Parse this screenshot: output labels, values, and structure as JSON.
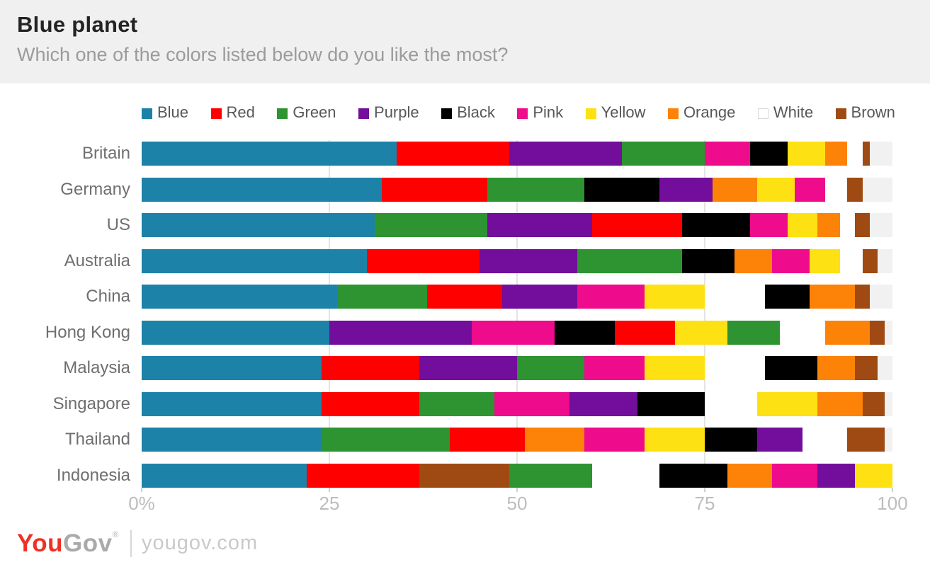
{
  "header": {
    "title": "Blue planet",
    "subtitle": "Which one of the colors listed below do you like the most?"
  },
  "footer": {
    "brand_you": "You",
    "brand_gov": "Gov",
    "reg_mark": "®",
    "domain": "yougov.com"
  },
  "colors": {
    "header_bg": "#f0f0f0",
    "bar_track": "#f1f1f1",
    "gridline": "#e4e4e4",
    "palette": {
      "Blue": "#1d82a8",
      "Red": "#fe0000",
      "Green": "#2e9431",
      "Purple": "#720e9b",
      "Black": "#000000",
      "Pink": "#ee0b8c",
      "Yellow": "#fee112",
      "Orange": "#fd8208",
      "White": "#ffffff",
      "Brown": "#9e4a12"
    }
  },
  "chart_data": {
    "type": "bar",
    "stacked": true,
    "orientation": "horizontal",
    "unit": "%",
    "title": "Blue planet",
    "subtitle": "Which one of the colors listed below do you like the most?",
    "xlim": [
      0,
      100
    ],
    "grid_values": [
      25,
      50,
      75
    ],
    "x_ticks": [
      {
        "value": 0,
        "label": "0%"
      },
      {
        "value": 25,
        "label": "25"
      },
      {
        "value": 50,
        "label": "50"
      },
      {
        "value": 75,
        "label": "75"
      },
      {
        "value": 100,
        "label": "100"
      }
    ],
    "legend": [
      "Blue",
      "Red",
      "Green",
      "Purple",
      "Black",
      "Pink",
      "Yellow",
      "Orange",
      "White",
      "Brown"
    ],
    "legend_position": "top",
    "rows": [
      {
        "country": "Britain",
        "segments": [
          [
            "Blue",
            34
          ],
          [
            "Red",
            15
          ],
          [
            "Purple",
            15
          ],
          [
            "Green",
            11
          ],
          [
            "Pink",
            6
          ],
          [
            "Black",
            5
          ],
          [
            "Yellow",
            5
          ],
          [
            "Orange",
            3
          ],
          [
            "White",
            2
          ],
          [
            "Brown",
            1
          ]
        ]
      },
      {
        "country": "Germany",
        "segments": [
          [
            "Blue",
            32
          ],
          [
            "Red",
            14
          ],
          [
            "Green",
            13
          ],
          [
            "Black",
            10
          ],
          [
            "Purple",
            7
          ],
          [
            "Orange",
            6
          ],
          [
            "Yellow",
            5
          ],
          [
            "Pink",
            4
          ],
          [
            "White",
            3
          ],
          [
            "Brown",
            2
          ]
        ]
      },
      {
        "country": "US",
        "segments": [
          [
            "Blue",
            31
          ],
          [
            "Green",
            15
          ],
          [
            "Purple",
            14
          ],
          [
            "Red",
            12
          ],
          [
            "Black",
            9
          ],
          [
            "Pink",
            5
          ],
          [
            "Yellow",
            4
          ],
          [
            "Orange",
            3
          ],
          [
            "White",
            2
          ],
          [
            "Brown",
            2
          ]
        ]
      },
      {
        "country": "Australia",
        "segments": [
          [
            "Blue",
            30
          ],
          [
            "Red",
            15
          ],
          [
            "Purple",
            13
          ],
          [
            "Green",
            14
          ],
          [
            "Black",
            7
          ],
          [
            "Orange",
            5
          ],
          [
            "Pink",
            5
          ],
          [
            "Yellow",
            4
          ],
          [
            "White",
            3
          ],
          [
            "Brown",
            2
          ]
        ]
      },
      {
        "country": "China",
        "segments": [
          [
            "Blue",
            26
          ],
          [
            "Green",
            12
          ],
          [
            "Red",
            10
          ],
          [
            "Purple",
            10
          ],
          [
            "Pink",
            9
          ],
          [
            "Yellow",
            8
          ],
          [
            "White",
            8
          ],
          [
            "Black",
            6
          ],
          [
            "Orange",
            6
          ],
          [
            "Brown",
            2
          ]
        ]
      },
      {
        "country": "Hong Kong",
        "segments": [
          [
            "Blue",
            25
          ],
          [
            "Purple",
            19
          ],
          [
            "Pink",
            11
          ],
          [
            "Black",
            8
          ],
          [
            "Red",
            8
          ],
          [
            "Yellow",
            7
          ],
          [
            "Green",
            7
          ],
          [
            "White",
            6
          ],
          [
            "Orange",
            6
          ],
          [
            "Brown",
            2
          ]
        ]
      },
      {
        "country": "Malaysia",
        "segments": [
          [
            "Blue",
            24
          ],
          [
            "Red",
            13
          ],
          [
            "Purple",
            13
          ],
          [
            "Green",
            9
          ],
          [
            "Pink",
            8
          ],
          [
            "Yellow",
            8
          ],
          [
            "White",
            8
          ],
          [
            "Black",
            7
          ],
          [
            "Orange",
            5
          ],
          [
            "Brown",
            3
          ]
        ]
      },
      {
        "country": "Singapore",
        "segments": [
          [
            "Blue",
            24
          ],
          [
            "Red",
            13
          ],
          [
            "Green",
            10
          ],
          [
            "Pink",
            10
          ],
          [
            "Purple",
            9
          ],
          [
            "Black",
            9
          ],
          [
            "White",
            7
          ],
          [
            "Yellow",
            8
          ],
          [
            "Orange",
            6
          ],
          [
            "Brown",
            3
          ]
        ]
      },
      {
        "country": "Thailand",
        "segments": [
          [
            "Blue",
            24
          ],
          [
            "Green",
            17
          ],
          [
            "Red",
            10
          ],
          [
            "Orange",
            8
          ],
          [
            "Pink",
            8
          ],
          [
            "Yellow",
            8
          ],
          [
            "Black",
            7
          ],
          [
            "Purple",
            6
          ],
          [
            "White",
            6
          ],
          [
            "Brown",
            5
          ]
        ]
      },
      {
        "country": "Indonesia",
        "segments": [
          [
            "Blue",
            22
          ],
          [
            "Red",
            15
          ],
          [
            "Brown",
            12
          ],
          [
            "Green",
            11
          ],
          [
            "White",
            9
          ],
          [
            "Black",
            9
          ],
          [
            "Orange",
            6
          ],
          [
            "Pink",
            6
          ],
          [
            "Purple",
            5
          ],
          [
            "Yellow",
            5
          ]
        ]
      }
    ]
  }
}
